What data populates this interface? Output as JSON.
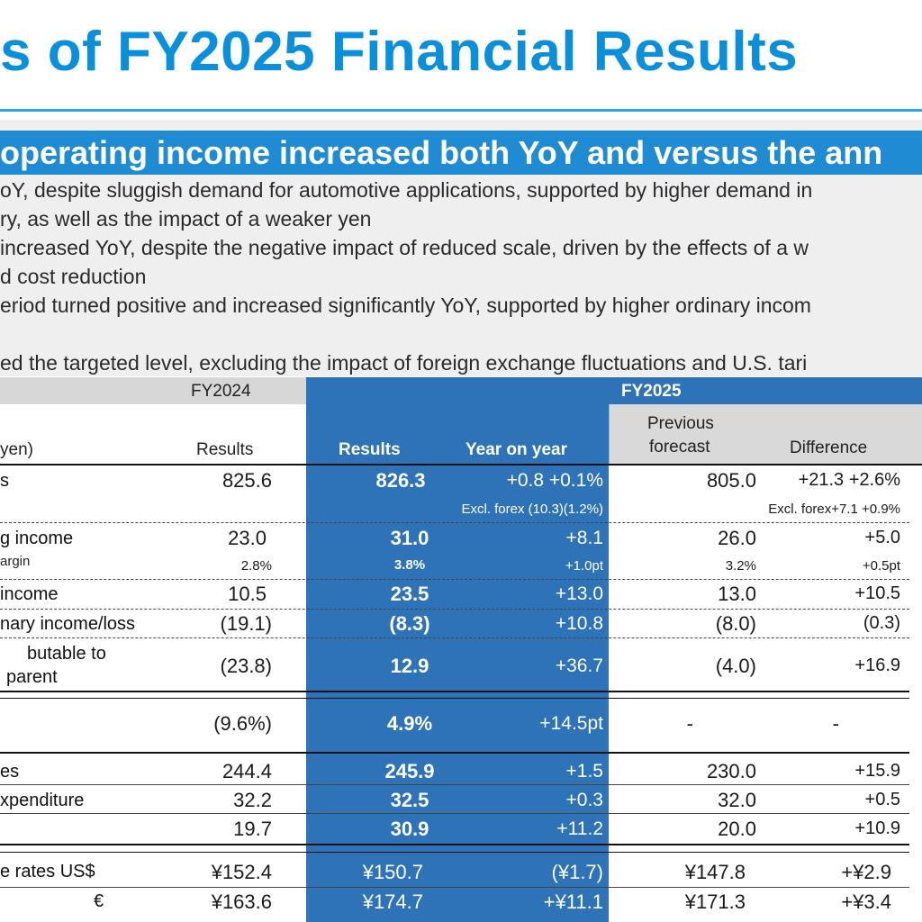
{
  "title": "s of FY2025 Financial Results",
  "headline": "operating income increased both YoY and versus the ann",
  "bullets": [
    "oY, despite sluggish demand for automotive applications, supported by higher demand in",
    "ry, as well as the impact of a weaker yen",
    "increased YoY, despite the negative impact of reduced scale, driven by the effects of a w",
    "d cost reduction",
    "eriod turned positive and increased significantly YoY, supported by higher ordinary incom",
    "ed the targeted level, excluding the impact of foreign exchange fluctuations and U.S. tari"
  ],
  "table": {
    "fy2024_label": "FY2024",
    "fy2025_label": "FY2025",
    "unit_label": "yen)",
    "col_results_2024": "Results",
    "col_results_2025": "Results",
    "col_yoy": "Year on year",
    "col_prev_forecast_1": "Previous",
    "col_prev_forecast_2": "forecast",
    "col_difference": "Difference",
    "rows": {
      "sales": {
        "label": "s",
        "fy24": "825.6",
        "fy25": "826.3",
        "yoy": "+0.8 +0.1%",
        "prev": "805.0",
        "diff": "+21.3 +2.6%"
      },
      "sales_forex": {
        "yoy": "Excl. forex (10.3)(1.2%)",
        "diff": "Excl. forex+7.1 +0.9%"
      },
      "op_income": {
        "label": "g income",
        "fy24": "23.0",
        "fy25": "31.0",
        "yoy": "+8.1",
        "prev": "26.0",
        "diff": "+5.0"
      },
      "op_margin": {
        "label": "argin",
        "fy24": "2.8%",
        "fy25": "3.8%",
        "yoy": "+1.0pt",
        "prev": "3.2%",
        "diff": "+0.5pt"
      },
      "ord_income": {
        "label": "income",
        "fy24": "10.5",
        "fy25": "23.5",
        "yoy": "+13.0",
        "prev": "13.0",
        "diff": "+10.5"
      },
      "extraordinary": {
        "label": "nary income/loss",
        "fy24": "(19.1)",
        "fy25": "(8.3)",
        "yoy": "+10.8",
        "prev": "(8.0)",
        "diff": "(0.3)"
      },
      "net_income": {
        "label1": "butable to",
        "label2": "parent",
        "fy24": "(23.8)",
        "fy25": "12.9",
        "yoy": "+36.7",
        "prev": "(4.0)",
        "diff": "+16.9"
      },
      "roe": {
        "fy24": "(9.6%)",
        "fy25": "4.9%",
        "yoy": "+14.5pt",
        "prev": "-",
        "diff": "-"
      },
      "es": {
        "label": "es",
        "fy24": "244.4",
        "fy25": "245.9",
        "yoy": "+1.5",
        "prev": "230.0",
        "diff": "+15.9"
      },
      "capex": {
        "label": "xpenditure",
        "fy24": "32.2",
        "fy25": "32.5",
        "yoy": "+0.3",
        "prev": "32.0",
        "diff": "+0.5"
      },
      "other": {
        "fy24": "19.7",
        "fy25": "30.9",
        "yoy": "+11.2",
        "prev": "20.0",
        "diff": "+10.9"
      },
      "usd": {
        "label": "e rates  US$",
        "fy24": "¥152.4",
        "fy25": "¥150.7",
        "yoy": "(¥1.7)",
        "prev": "¥147.8",
        "diff": "+¥2.9"
      },
      "eur": {
        "label": "€",
        "fy24": "¥163.6",
        "fy25": "¥174.7",
        "yoy": "+¥11.1",
        "prev": "¥171.3",
        "diff": "+¥3.4"
      }
    }
  }
}
